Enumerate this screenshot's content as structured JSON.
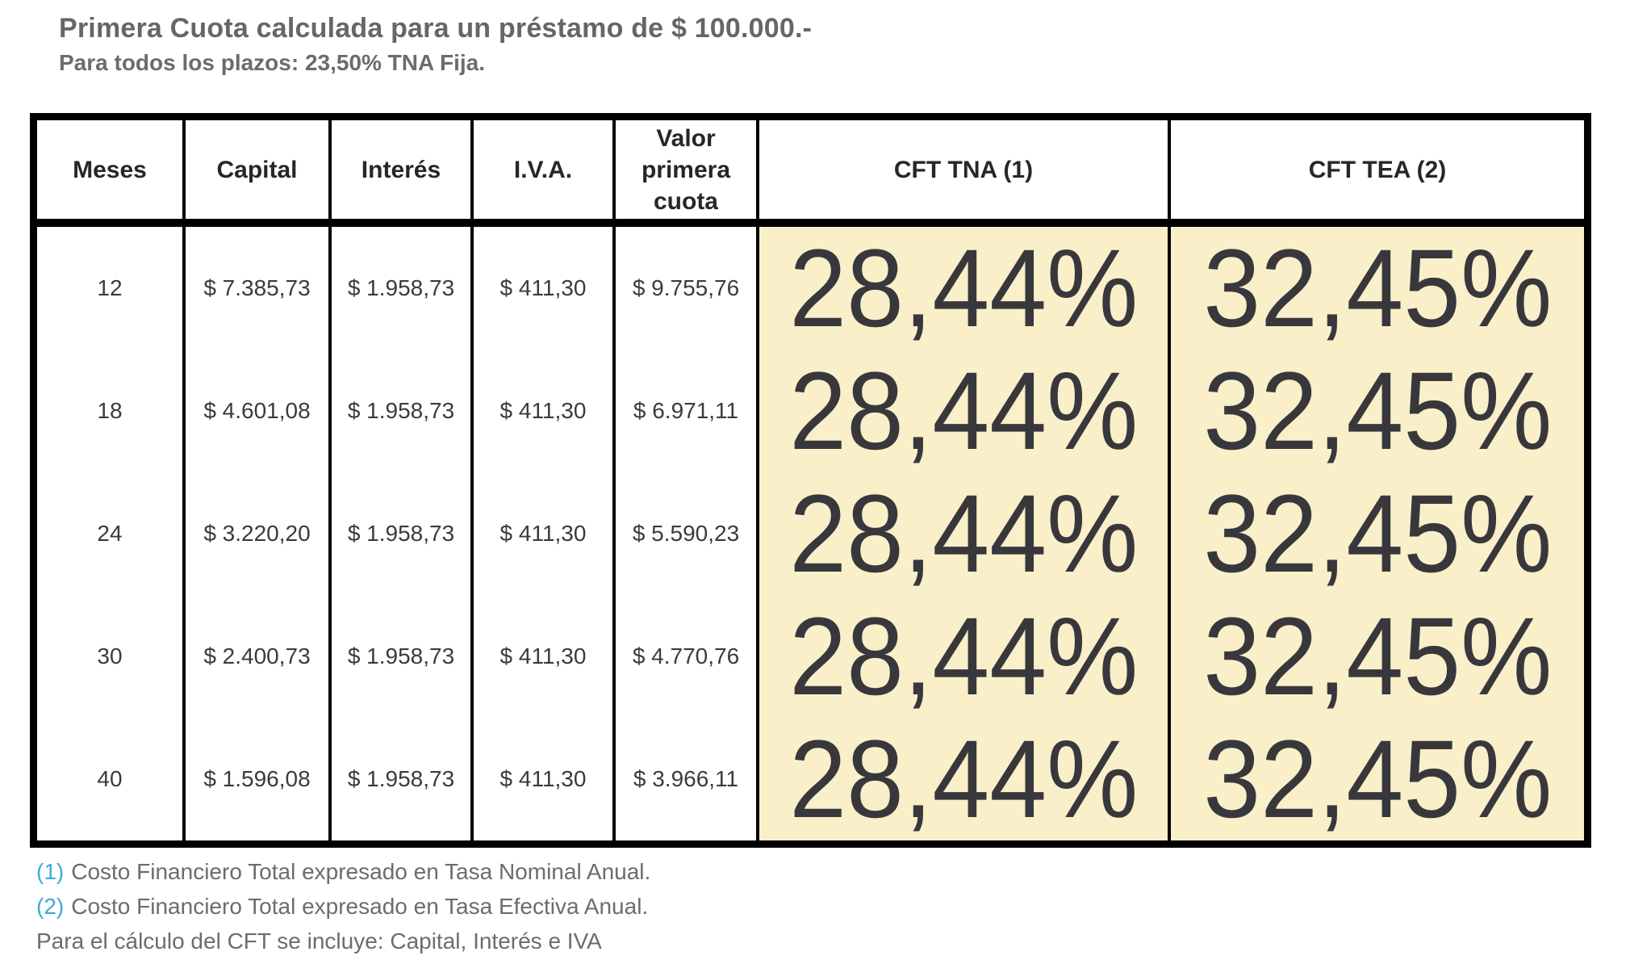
{
  "header": {
    "title": "Primera Cuota calculada para un préstamo de $ 100.000.-",
    "subtitle": "Para todos los plazos: 23,50% TNA Fija."
  },
  "table": {
    "headers": [
      "Meses",
      "Capital",
      "Interés",
      "I.V.A.",
      "Valor primera cuota",
      "CFT TNA (1)",
      "CFT TEA (2)"
    ],
    "rows": [
      {
        "meses": "12",
        "capital": "$ 7.385,73",
        "interes": "$ 1.958,73",
        "iva": "$ 411,30",
        "valor_primera_cuota": "$ 9.755,76",
        "cft_tna": "28,44%",
        "cft_tea": "32,45%"
      },
      {
        "meses": "18",
        "capital": "$ 4.601,08",
        "interes": "$ 1.958,73",
        "iva": "$ 411,30",
        "valor_primera_cuota": "$ 6.971,11",
        "cft_tna": "28,44%",
        "cft_tea": "32,45%"
      },
      {
        "meses": "24",
        "capital": "$ 3.220,20",
        "interes": "$ 1.958,73",
        "iva": "$ 411,30",
        "valor_primera_cuota": "$ 5.590,23",
        "cft_tna": "28,44%",
        "cft_tea": "32,45%"
      },
      {
        "meses": "30",
        "capital": "$ 2.400,73",
        "interes": "$ 1.958,73",
        "iva": "$ 411,30",
        "valor_primera_cuota": "$ 4.770,76",
        "cft_tna": "28,44%",
        "cft_tea": "32,45%"
      },
      {
        "meses": "40",
        "capital": "$ 1.596,08",
        "interes": "$ 1.958,73",
        "iva": "$ 411,30",
        "valor_primera_cuota": "$ 3.966,11",
        "cft_tna": "28,44%",
        "cft_tea": "32,45%"
      }
    ]
  },
  "footnotes": [
    {
      "marker": "(1)",
      "text": "Costo Financiero Total expresado en Tasa Nominal Anual."
    },
    {
      "marker": "(2)",
      "text": "Costo Financiero Total expresado en Tasa Efectiva Anual."
    },
    {
      "marker": "",
      "text": "Para el cálculo del CFT se incluye: Capital, Interés e IVA"
    }
  ],
  "colors": {
    "highlight_background": "#f9efc9",
    "footnote_marker_blue": "#41a9dc",
    "border_black": "#000000",
    "heading_gray": "#656667"
  }
}
